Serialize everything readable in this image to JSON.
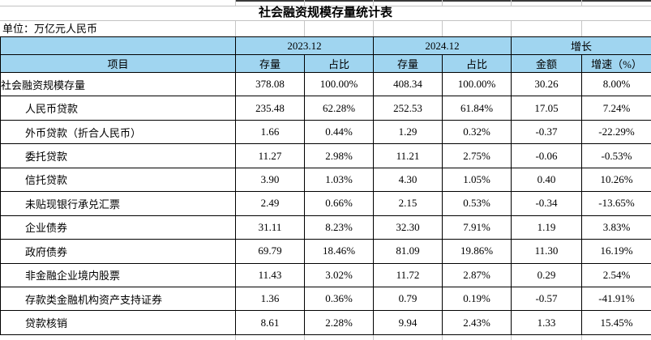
{
  "chart_data": {
    "type": "table",
    "title": "社会融资规模存量统计表",
    "unit": "单位：万亿元人民币",
    "group_headers": [
      "2023.12",
      "2024.12",
      "增长"
    ],
    "column_headers": [
      "项目",
      "存量",
      "占比",
      "存量",
      "占比",
      "金额",
      "增速（%）"
    ],
    "rows": [
      {
        "label": "社会融资规模存量",
        "indent": false,
        "values": [
          "378.08",
          "100.00%",
          "408.34",
          "100.00%",
          "30.26",
          "8.00%"
        ]
      },
      {
        "label": "人民币贷款",
        "indent": true,
        "values": [
          "235.48",
          "62.28%",
          "252.53",
          "61.84%",
          "17.05",
          "7.24%"
        ]
      },
      {
        "label": "外币贷款（折合人民币）",
        "indent": true,
        "values": [
          "1.66",
          "0.44%",
          "1.29",
          "0.32%",
          "-0.37",
          "-22.29%"
        ]
      },
      {
        "label": "委托贷款",
        "indent": true,
        "values": [
          "11.27",
          "2.98%",
          "11.21",
          "2.75%",
          "-0.06",
          "-0.53%"
        ]
      },
      {
        "label": "信托贷款",
        "indent": true,
        "values": [
          "3.90",
          "1.03%",
          "4.30",
          "1.05%",
          "0.40",
          "10.26%"
        ]
      },
      {
        "label": "未贴现银行承兑汇票",
        "indent": true,
        "values": [
          "2.49",
          "0.66%",
          "2.15",
          "0.53%",
          "-0.34",
          "-13.65%"
        ]
      },
      {
        "label": "企业债券",
        "indent": true,
        "values": [
          "31.11",
          "8.23%",
          "32.30",
          "7.91%",
          "1.19",
          "3.83%"
        ]
      },
      {
        "label": "政府债券",
        "indent": true,
        "values": [
          "69.79",
          "18.46%",
          "81.09",
          "19.86%",
          "11.30",
          "16.19%"
        ]
      },
      {
        "label": "非金融企业境内股票",
        "indent": true,
        "values": [
          "11.43",
          "3.02%",
          "11.72",
          "2.87%",
          "0.29",
          "2.54%"
        ]
      },
      {
        "label": "存款类金融机构资产支持证券",
        "indent": true,
        "values": [
          "1.36",
          "0.36%",
          "0.79",
          "0.19%",
          "-0.57",
          "-41.91%"
        ]
      },
      {
        "label": "贷款核销",
        "indent": true,
        "values": [
          "8.61",
          "2.28%",
          "9.94",
          "2.43%",
          "1.33",
          "15.45%"
        ]
      }
    ],
    "colors": {
      "header_bg": "#a0d5f0",
      "table_border": "#000000",
      "gridline": "#c6c6c6"
    }
  }
}
